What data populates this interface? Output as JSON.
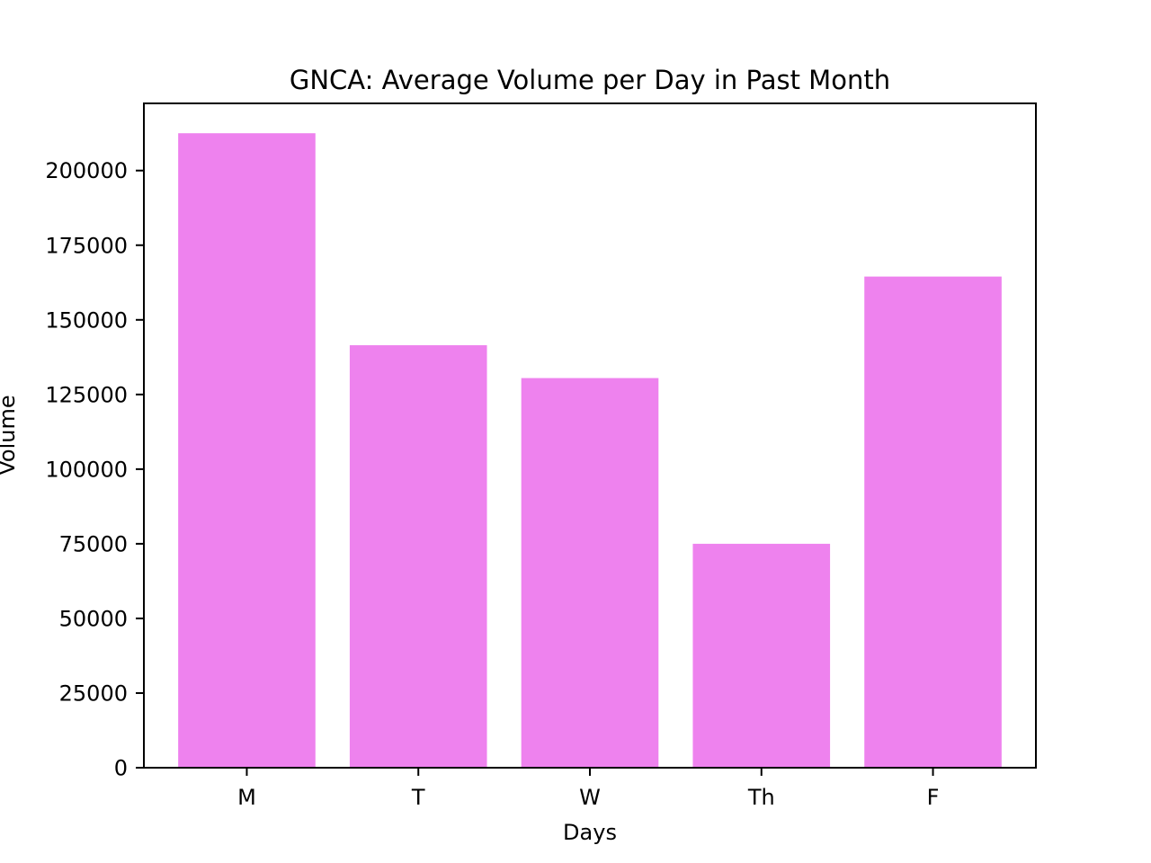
{
  "chart_data": {
    "type": "bar",
    "title": "GNCA: Average Volume per Day in Past Month",
    "xlabel": "Days",
    "ylabel": "Volume",
    "categories": [
      "M",
      "T",
      "W",
      "Th",
      "F"
    ],
    "values": [
      212500,
      141500,
      130500,
      75000,
      164500
    ],
    "ylim": [
      0,
      222500
    ],
    "yticks": [
      0,
      25000,
      50000,
      75000,
      100000,
      125000,
      150000,
      175000,
      200000
    ],
    "ytick_labels": [
      "0",
      "25000",
      "50000",
      "75000",
      "100000",
      "125000",
      "150000",
      "175000",
      "200000"
    ],
    "bar_color": "#ee82ee",
    "grid": false,
    "legend": "none"
  }
}
